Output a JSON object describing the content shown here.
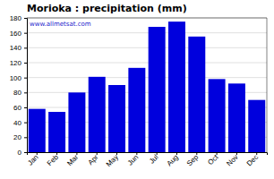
{
  "chart_data": {
    "type": "bar",
    "title": "Morioka : precipitation (mm)",
    "categories": [
      "Jan",
      "Feb",
      "Mar",
      "Apr",
      "May",
      "Jun",
      "Jul",
      "Aug",
      "Sep",
      "Oct",
      "Nov",
      "Dec"
    ],
    "values": [
      58,
      54,
      80,
      101,
      90,
      113,
      168,
      175,
      155,
      98,
      92,
      70
    ],
    "color": "#0000dd",
    "ylim": [
      0,
      180
    ],
    "yticks": [
      0,
      20,
      40,
      60,
      80,
      100,
      120,
      140,
      160,
      180
    ],
    "grid": true,
    "annotations": [
      "www.allmetsat.com"
    ]
  }
}
